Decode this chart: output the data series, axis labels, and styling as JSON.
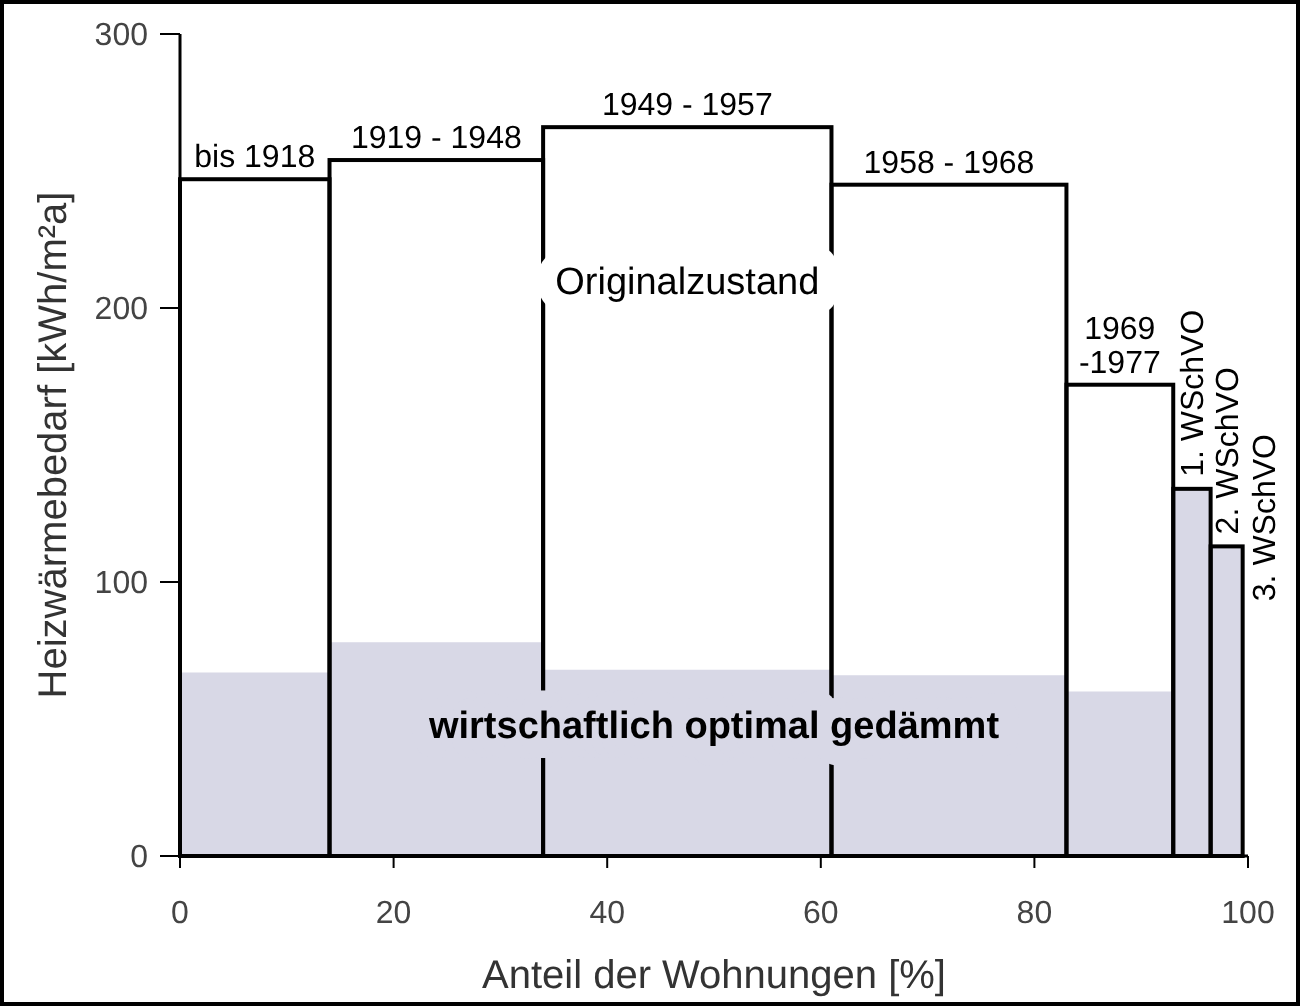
{
  "chart_data": {
    "type": "histogram",
    "xlabel": "Anteil der Wohnungen [%]",
    "ylabel": "Heizwärmebedarf [kWh/m²a]",
    "bins": [
      0,
      14,
      34,
      61,
      83,
      93,
      96.5,
      99.5
    ],
    "categories": [
      "bis 1918",
      "1919 - 1948",
      "1949 - 1957",
      "1958 - 1968",
      "1969 -1977",
      "1. WSchVO",
      "2. WSchVO"
    ],
    "series": [
      {
        "name": "Originalzustand",
        "color": "#000000",
        "values": [
          247,
          254,
          266,
          245,
          172,
          134,
          113
        ]
      },
      {
        "name": "wirtschaftlich optimal gedämmt",
        "type": "area",
        "color": "#d8d8e6",
        "x": [
          0,
          14,
          14,
          34,
          34,
          61,
          61,
          83,
          83,
          93,
          93,
          96.5,
          96.5,
          99.5
        ],
        "values": [
          67,
          67,
          78,
          78,
          68,
          68,
          66,
          66,
          60,
          60,
          134,
          134,
          113,
          113
        ]
      }
    ],
    "annotations": [
      {
        "text": "3. WSchVO",
        "x": 100,
        "y": 93
      }
    ],
    "xlim": [
      0,
      100
    ],
    "xticks": [
      0,
      20,
      40,
      60,
      80,
      100
    ],
    "ylim": [
      0,
      300
    ],
    "yticks": [
      0,
      100,
      200,
      300
    ]
  }
}
